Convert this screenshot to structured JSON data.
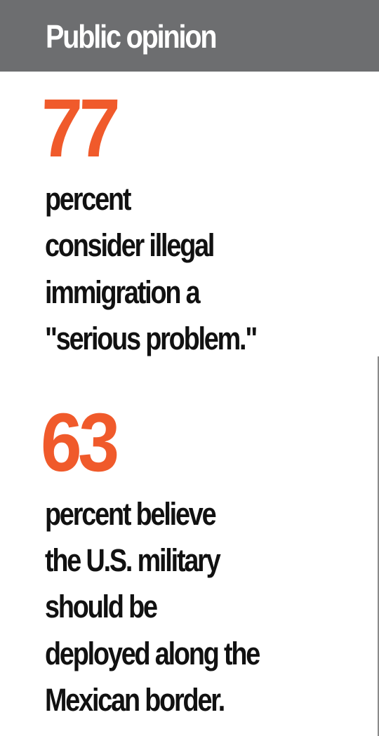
{
  "header": {
    "title": "Public opinion"
  },
  "colors": {
    "header_background": "#6d6e70",
    "header_text": "#ffffff",
    "accent_number": "#f05a2b",
    "body_text": "#111111"
  },
  "stats": [
    {
      "number": "77",
      "lines": [
        "percent",
        "consider illegal",
        "immigration a",
        "\"serious problem.\""
      ]
    },
    {
      "number": "63",
      "lines": [
        "percent believe",
        "the U.S. military",
        "should be",
        "deployed along the",
        "Mexican border."
      ]
    }
  ]
}
